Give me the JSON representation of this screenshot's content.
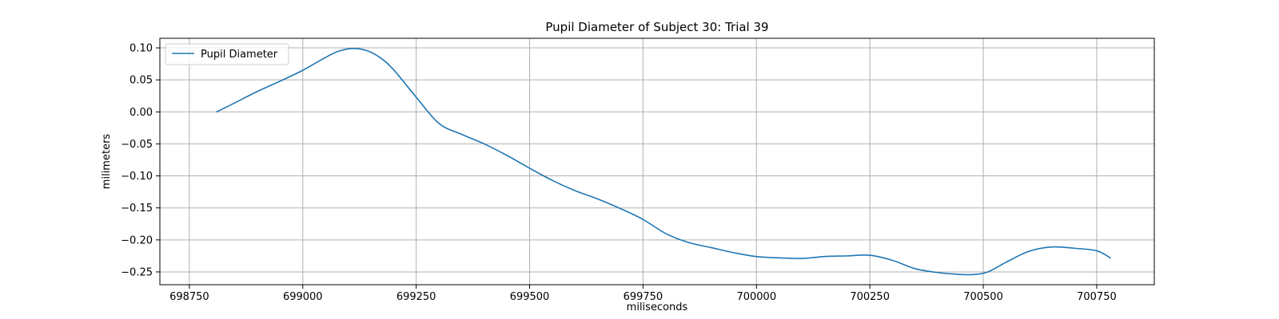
{
  "chart_data": {
    "type": "line",
    "title": "Pupil Diameter of Subject 30: Trial 39",
    "xlabel": "miliseconds",
    "ylabel": "milimeters",
    "xlim": [
      698685,
      700877
    ],
    "ylim": [
      -0.27,
      0.115
    ],
    "xticks": [
      698750,
      699000,
      699250,
      699500,
      699750,
      700000,
      700250,
      700500,
      700750
    ],
    "yticks": [
      0.1,
      0.05,
      0.0,
      -0.05,
      -0.1,
      -0.15,
      -0.2,
      -0.25
    ],
    "xtick_labels": [
      "698750",
      "699000",
      "699250",
      "699500",
      "699750",
      "700000",
      "700250",
      "700500",
      "700750"
    ],
    "ytick_labels": [
      "0.10",
      "0.05",
      "0.00",
      "−0.05",
      "−0.10",
      "−0.15",
      "−0.20",
      "−0.25"
    ],
    "grid": true,
    "legend_position": "top-left",
    "series": [
      {
        "name": "Pupil Diameter",
        "color": "#1f77b4",
        "x": [
          698810,
          698850,
          698900,
          698950,
          699000,
          699050,
          699080,
          699110,
          699140,
          699170,
          699200,
          699250,
          699300,
          699350,
          699400,
          699450,
          699500,
          699550,
          699600,
          699650,
          699700,
          699750,
          699800,
          699850,
          699900,
          699950,
          700000,
          700050,
          700100,
          700150,
          700200,
          700250,
          700300,
          700350,
          700400,
          700450,
          700480,
          700510,
          700550,
          700600,
          700650,
          700700,
          700750,
          700780
        ],
        "y": [
          0.0,
          0.014,
          0.032,
          0.048,
          0.065,
          0.085,
          0.095,
          0.099,
          0.096,
          0.085,
          0.066,
          0.023,
          -0.018,
          -0.035,
          -0.05,
          -0.068,
          -0.088,
          -0.107,
          -0.123,
          -0.136,
          -0.151,
          -0.168,
          -0.19,
          -0.204,
          -0.212,
          -0.22,
          -0.226,
          -0.228,
          -0.229,
          -0.226,
          -0.225,
          -0.224,
          -0.232,
          -0.245,
          -0.251,
          -0.254,
          -0.254,
          -0.25,
          -0.235,
          -0.218,
          -0.211,
          -0.213,
          -0.217,
          -0.228
        ]
      }
    ]
  }
}
